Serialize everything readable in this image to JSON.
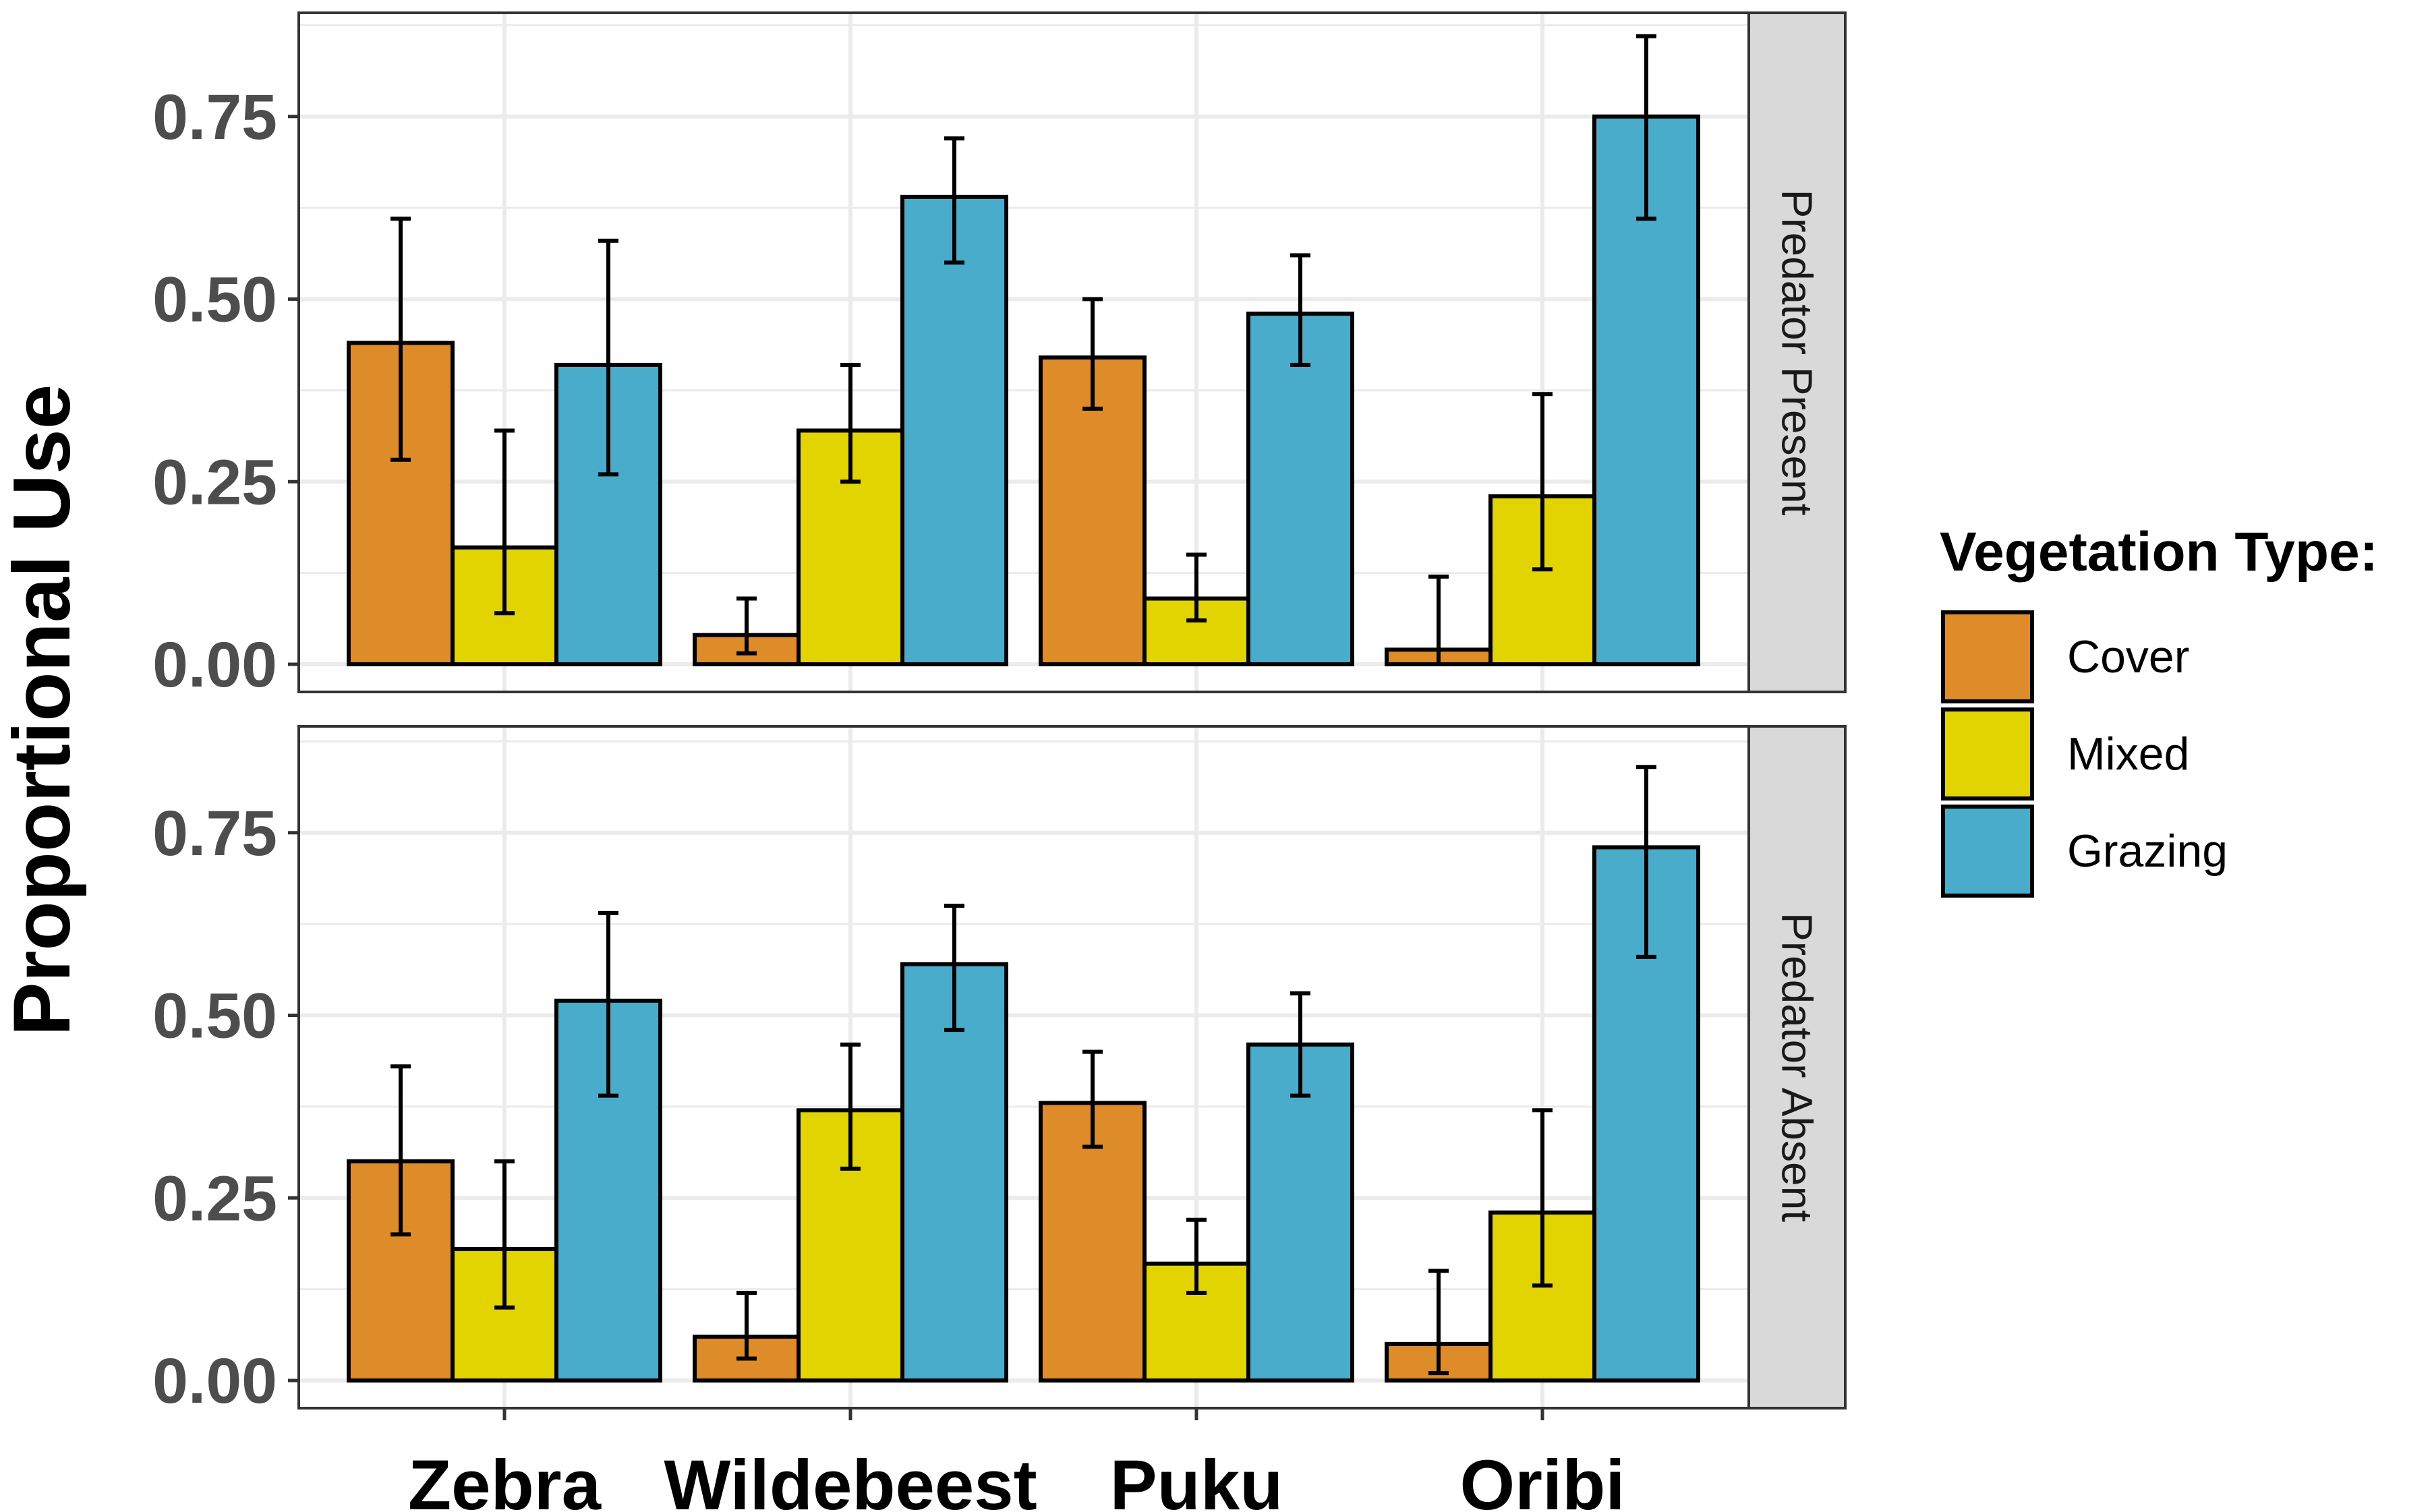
{
  "chart_data": {
    "type": "bar",
    "ylabel": "Proportional Use",
    "xlabel": "",
    "categories": [
      "Zebra",
      "Wildebeest",
      "Puku",
      "Oribi"
    ],
    "ylim": [
      0,
      0.88
    ],
    "y_ticks": [
      0,
      0.25,
      0.5,
      0.75
    ],
    "y_tick_labels": [
      "0.00",
      "0.25",
      "0.50",
      "0.75"
    ],
    "grid": true,
    "legend": {
      "title": "Vegetation Type:",
      "position": "right",
      "entries": [
        "Cover",
        "Mixed",
        "Grazing"
      ]
    },
    "colors": {
      "Cover": "#DE8B2A",
      "Mixed": "#E1D400",
      "Grazing": "#4AACCB"
    },
    "panels": [
      {
        "label": "Predator Present",
        "series": [
          {
            "name": "Cover",
            "values": [
              0.44,
              0.04,
              0.42,
              0.02
            ],
            "lower": [
              0.28,
              0.015,
              0.35,
              0.0
            ],
            "upper": [
              0.61,
              0.09,
              0.5,
              0.12
            ]
          },
          {
            "name": "Mixed",
            "values": [
              0.16,
              0.32,
              0.09,
              0.23
            ],
            "lower": [
              0.07,
              0.25,
              0.06,
              0.13
            ],
            "upper": [
              0.32,
              0.41,
              0.15,
              0.37
            ]
          },
          {
            "name": "Grazing",
            "values": [
              0.41,
              0.64,
              0.48,
              0.75
            ],
            "lower": [
              0.26,
              0.55,
              0.41,
              0.61
            ],
            "upper": [
              0.58,
              0.72,
              0.56,
              0.86
            ]
          }
        ]
      },
      {
        "label": "Predator Absent",
        "series": [
          {
            "name": "Cover",
            "values": [
              0.3,
              0.06,
              0.38,
              0.05
            ],
            "lower": [
              0.2,
              0.03,
              0.32,
              0.01
            ],
            "upper": [
              0.43,
              0.12,
              0.45,
              0.15
            ]
          },
          {
            "name": "Mixed",
            "values": [
              0.18,
              0.37,
              0.16,
              0.23
            ],
            "lower": [
              0.1,
              0.29,
              0.12,
              0.13
            ],
            "upper": [
              0.3,
              0.46,
              0.22,
              0.37
            ]
          },
          {
            "name": "Grazing",
            "values": [
              0.52,
              0.57,
              0.46,
              0.73
            ],
            "lower": [
              0.39,
              0.48,
              0.39,
              0.58
            ],
            "upper": [
              0.64,
              0.65,
              0.53,
              0.84
            ]
          }
        ]
      }
    ]
  }
}
